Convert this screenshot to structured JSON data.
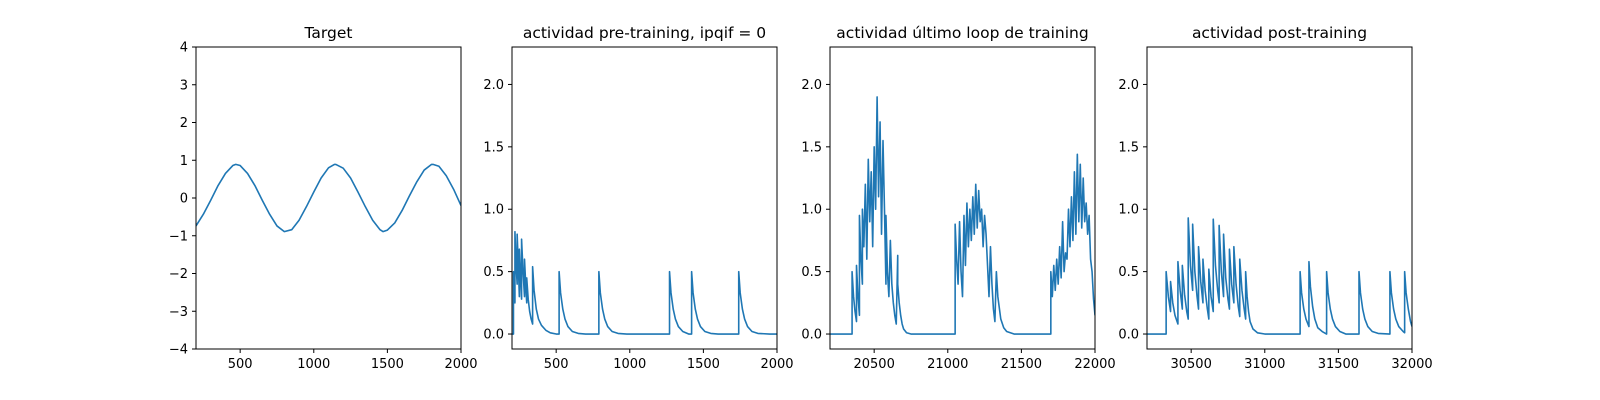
{
  "chart_data": [
    {
      "type": "line",
      "title": "Target",
      "xlabel": "",
      "ylabel": "",
      "xlim": [
        200,
        2000
      ],
      "ylim": [
        -4,
        4
      ],
      "xticks": [
        500,
        1000,
        1500,
        2000
      ],
      "yticks": [
        -4,
        -3,
        -2,
        -1,
        0,
        1,
        2,
        3,
        4
      ],
      "grid": false,
      "series": [
        {
          "color": "#1f77b4",
          "x": [
            200,
            250,
            300,
            350,
            400,
            450,
            470,
            500,
            550,
            600,
            650,
            700,
            750,
            800,
            850,
            900,
            950,
            1000,
            1050,
            1100,
            1140,
            1150,
            1200,
            1250,
            1300,
            1350,
            1400,
            1450,
            1470,
            1500,
            1550,
            1600,
            1650,
            1700,
            1750,
            1800,
            1810,
            1850,
            1900,
            1950,
            2000
          ],
          "y": [
            -0.74,
            -0.43,
            -0.06,
            0.33,
            0.65,
            0.86,
            0.89,
            0.86,
            0.65,
            0.33,
            -0.06,
            -0.43,
            -0.74,
            -0.89,
            -0.84,
            -0.59,
            -0.23,
            0.16,
            0.53,
            0.8,
            0.89,
            0.89,
            0.79,
            0.53,
            0.16,
            -0.23,
            -0.59,
            -0.84,
            -0.89,
            -0.85,
            -0.66,
            -0.33,
            0.06,
            0.43,
            0.74,
            0.89,
            0.89,
            0.84,
            0.59,
            0.23,
            -0.2
          ]
        }
      ]
    },
    {
      "type": "line",
      "title": "actividad pre-training, ipqif = 0",
      "xlabel": "",
      "ylabel": "",
      "xlim": [
        200,
        2000
      ],
      "ylim": [
        -0.12,
        2.3
      ],
      "xticks": [
        500,
        1000,
        1500,
        2000
      ],
      "yticks": [
        0.0,
        0.5,
        1.0,
        1.5,
        2.0
      ],
      "ytick_labels": [
        "0.0",
        "0.5",
        "1.0",
        "1.5",
        "2.0"
      ],
      "grid": false,
      "series": [
        {
          "color": "#1f77b4",
          "x": [
            200,
            210,
            210,
            215,
            220,
            220,
            228,
            235,
            235,
            243,
            250,
            250,
            258,
            265,
            265,
            275,
            285,
            285,
            295,
            300,
            300,
            310,
            320,
            330,
            340,
            340,
            350,
            365,
            380,
            400,
            430,
            460,
            500,
            520,
            520,
            530,
            545,
            560,
            580,
            610,
            650,
            700,
            760,
            790,
            790,
            800,
            815,
            830,
            850,
            880,
            920,
            980,
            1050,
            1150,
            1250,
            1270,
            1270,
            1280,
            1295,
            1310,
            1330,
            1360,
            1400,
            1420,
            1420,
            1430,
            1445,
            1460,
            1480,
            1510,
            1550,
            1600,
            1700,
            1740,
            1740,
            1750,
            1765,
            1780,
            1800,
            1830,
            1870,
            1950,
            2000
          ],
          "y": [
            0,
            0,
            0.5,
            0.35,
            0.25,
            0.82,
            0.55,
            0.4,
            0.8,
            0.55,
            0.3,
            0.68,
            0.45,
            0.28,
            0.76,
            0.5,
            0.3,
            0.6,
            0.35,
            0.25,
            0.45,
            0.28,
            0.18,
            0.12,
            0.08,
            0.54,
            0.35,
            0.2,
            0.12,
            0.07,
            0.03,
            0.01,
            0,
            0,
            0.5,
            0.33,
            0.2,
            0.12,
            0.06,
            0.02,
            0.005,
            0,
            0,
            0,
            0.5,
            0.33,
            0.2,
            0.12,
            0.06,
            0.02,
            0.005,
            0,
            0,
            0,
            0,
            0,
            0.5,
            0.33,
            0.2,
            0.12,
            0.06,
            0.02,
            0,
            0,
            0.5,
            0.33,
            0.2,
            0.12,
            0.06,
            0.02,
            0.005,
            0,
            0,
            0,
            0.5,
            0.33,
            0.2,
            0.12,
            0.06,
            0.02,
            0.005,
            0,
            0
          ]
        }
      ]
    },
    {
      "type": "line",
      "title": "actividad último loop de training",
      "xlabel": "",
      "ylabel": "",
      "xlim": [
        20200,
        22000
      ],
      "ylim": [
        -0.12,
        2.3
      ],
      "xticks": [
        20500,
        21000,
        21500,
        22000
      ],
      "yticks": [
        0.0,
        0.5,
        1.0,
        1.5,
        2.0
      ],
      "ytick_labels": [
        "0.0",
        "0.5",
        "1.0",
        "1.5",
        "2.0"
      ],
      "grid": false,
      "series": [
        {
          "color": "#1f77b4",
          "x": [
            20200,
            20350,
            20350,
            20360,
            20370,
            20380,
            20380,
            20390,
            20400,
            20400,
            20410,
            20420,
            20420,
            20430,
            20440,
            20450,
            20460,
            20470,
            20480,
            20490,
            20500,
            20510,
            20520,
            20530,
            20540,
            20550,
            20560,
            20570,
            20580,
            20580,
            20590,
            20600,
            20610,
            20620,
            20630,
            20640,
            20650,
            20660,
            20660,
            20670,
            20680,
            20690,
            20700,
            20720,
            20750,
            20800,
            20900,
            21000,
            21050,
            21050,
            21060,
            21070,
            21080,
            21090,
            21100,
            21110,
            21120,
            21130,
            21140,
            21150,
            21160,
            21170,
            21180,
            21190,
            21200,
            21210,
            21220,
            21230,
            21240,
            21250,
            21260,
            21270,
            21280,
            21290,
            21300,
            21310,
            21320,
            21330,
            21340,
            21360,
            21380,
            21400,
            21450,
            21500,
            21600,
            21700,
            21700,
            21710,
            21720,
            21730,
            21740,
            21750,
            21760,
            21770,
            21780,
            21790,
            21800,
            21810,
            21820,
            21830,
            21840,
            21850,
            21860,
            21870,
            21880,
            21890,
            21900,
            21910,
            21920,
            21930,
            21940,
            21950,
            21960,
            21970,
            21980,
            21990,
            22000
          ],
          "y": [
            0,
            0,
            0.5,
            0.3,
            0.18,
            0.1,
            0.55,
            0.3,
            0.15,
            0.95,
            0.6,
            0.4,
            1.0,
            0.7,
            1.2,
            0.6,
            1.4,
            0.9,
            1.3,
            0.7,
            1.5,
            1.0,
            1.9,
            1.1,
            1.7,
            0.8,
            1.55,
            1.0,
            0.4,
            0.95,
            0.5,
            0.3,
            0.75,
            0.4,
            0.25,
            0.15,
            0.08,
            0.63,
            0.4,
            0.25,
            0.15,
            0.08,
            0.04,
            0.01,
            0,
            0,
            0,
            0,
            0,
            0.88,
            0.6,
            0.4,
            0.9,
            0.5,
            0.3,
            0.95,
            0.55,
            1.05,
            0.7,
            1.0,
            0.75,
            1.1,
            0.8,
            1.2,
            0.85,
            1.15,
            0.9,
            1.0,
            0.7,
            0.95,
            0.8,
            0.55,
            0.3,
            0.7,
            0.4,
            0.2,
            0.1,
            0.5,
            0.3,
            0.12,
            0.05,
            0.02,
            0,
            0,
            0,
            0,
            0.5,
            0.3,
            0.55,
            0.35,
            0.6,
            0.4,
            0.7,
            0.45,
            0.9,
            0.5,
            0.65,
            0.6,
            1.0,
            0.7,
            1.1,
            0.75,
            1.3,
            0.8,
            1.44,
            0.9,
            1.36,
            0.85,
            1.25,
            0.9,
            1.05,
            0.8,
            0.95,
            0.6,
            0.5,
            0.28,
            0.15
          ]
        }
      ]
    },
    {
      "type": "line",
      "title": "actividad post-training",
      "xlabel": "",
      "ylabel": "",
      "xlim": [
        30200,
        32000
      ],
      "ylim": [
        -0.12,
        2.3
      ],
      "xticks": [
        30500,
        31000,
        31500,
        32000
      ],
      "yticks": [
        0.0,
        0.5,
        1.0,
        1.5,
        2.0
      ],
      "ytick_labels": [
        "0.0",
        "0.5",
        "1.0",
        "1.5",
        "2.0"
      ],
      "grid": false,
      "series": [
        {
          "color": "#1f77b4",
          "x": [
            30200,
            30330,
            30330,
            30345,
            30360,
            30360,
            30375,
            30390,
            30410,
            30410,
            30425,
            30440,
            30440,
            30455,
            30470,
            30480,
            30480,
            30495,
            30510,
            30510,
            30525,
            30540,
            30550,
            30550,
            30565,
            30580,
            30580,
            30595,
            30610,
            30620,
            30620,
            30635,
            30650,
            30650,
            30665,
            30680,
            30690,
            30690,
            30705,
            30720,
            30720,
            30735,
            30750,
            30760,
            30760,
            30775,
            30790,
            30790,
            30805,
            30820,
            30830,
            30830,
            30845,
            30860,
            30870,
            30870,
            30880,
            30890,
            30900,
            30920,
            30950,
            31000,
            31100,
            31240,
            31240,
            31250,
            31265,
            31280,
            31300,
            31300,
            31310,
            31325,
            31340,
            31360,
            31390,
            31420,
            31420,
            31430,
            31445,
            31460,
            31480,
            31510,
            31550,
            31640,
            31640,
            31650,
            31665,
            31680,
            31700,
            31730,
            31770,
            31850,
            31850,
            31860,
            31875,
            31890,
            31910,
            31940,
            31950,
            31950,
            31960,
            31975,
            31990,
            32000
          ],
          "y": [
            0,
            0,
            0.5,
            0.3,
            0.18,
            0.42,
            0.25,
            0.15,
            0.08,
            0.58,
            0.35,
            0.2,
            0.55,
            0.32,
            0.18,
            0.12,
            0.93,
            0.55,
            0.35,
            0.88,
            0.5,
            0.3,
            0.2,
            0.7,
            0.42,
            0.25,
            0.6,
            0.35,
            0.2,
            0.12,
            0.52,
            0.3,
            0.18,
            0.92,
            0.55,
            0.35,
            0.25,
            0.87,
            0.5,
            0.3,
            0.8,
            0.45,
            0.28,
            0.2,
            0.68,
            0.4,
            0.25,
            0.7,
            0.4,
            0.22,
            0.14,
            0.6,
            0.35,
            0.2,
            0.12,
            0.5,
            0.3,
            0.18,
            0.1,
            0.04,
            0.01,
            0,
            0,
            0,
            0.5,
            0.33,
            0.2,
            0.12,
            0.06,
            0.58,
            0.38,
            0.22,
            0.12,
            0.05,
            0.02,
            0,
            0.5,
            0.33,
            0.2,
            0.12,
            0.06,
            0.02,
            0,
            0,
            0.5,
            0.33,
            0.2,
            0.12,
            0.06,
            0.02,
            0.005,
            0,
            0.5,
            0.33,
            0.2,
            0.12,
            0.06,
            0.02,
            0.01,
            0.5,
            0.33,
            0.2,
            0.1,
            0.06
          ]
        }
      ]
    }
  ]
}
